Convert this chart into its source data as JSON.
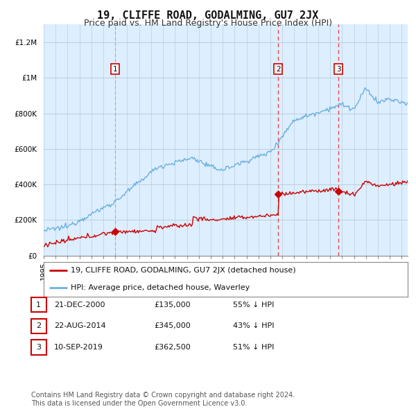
{
  "title": "19, CLIFFE ROAD, GODALMING, GU7 2JX",
  "subtitle": "Price paid vs. HM Land Registry's House Price Index (HPI)",
  "ylim": [
    0,
    1300000
  ],
  "yticks": [
    0,
    200000,
    400000,
    600000,
    800000,
    1000000,
    1200000
  ],
  "ytick_labels": [
    "£0",
    "£200K",
    "£400K",
    "£600K",
    "£800K",
    "£1M",
    "£1.2M"
  ],
  "background_color": "#ffffff",
  "chart_bg_color": "#ddeeff",
  "grid_color": "#bbccdd",
  "hpi_color": "#6ab0de",
  "price_color": "#cc0000",
  "sale_marker_color": "#cc0000",
  "vline_color": "#ee4444",
  "vline_grey": "#aaaaaa",
  "purchases": [
    {
      "date": 2001.0,
      "price": 135000,
      "label": "1",
      "vline": false
    },
    {
      "date": 2014.64,
      "price": 345000,
      "label": "2",
      "vline": true
    },
    {
      "date": 2019.7,
      "price": 362500,
      "label": "3",
      "vline": true
    }
  ],
  "legend_entries": [
    "19, CLIFFE ROAD, GODALMING, GU7 2JX (detached house)",
    "HPI: Average price, detached house, Waverley"
  ],
  "table_rows": [
    [
      "1",
      "21-DEC-2000",
      "£135,000",
      "55% ↓ HPI"
    ],
    [
      "2",
      "22-AUG-2014",
      "£345,000",
      "43% ↓ HPI"
    ],
    [
      "3",
      "10-SEP-2019",
      "£362,500",
      "51% ↓ HPI"
    ]
  ],
  "footer_text": "Contains HM Land Registry data © Crown copyright and database right 2024.\nThis data is licensed under the Open Government Licence v3.0.",
  "title_fontsize": 11,
  "subtitle_fontsize": 9,
  "tick_fontsize": 7.5,
  "legend_fontsize": 8,
  "table_fontsize": 8,
  "footer_fontsize": 7
}
